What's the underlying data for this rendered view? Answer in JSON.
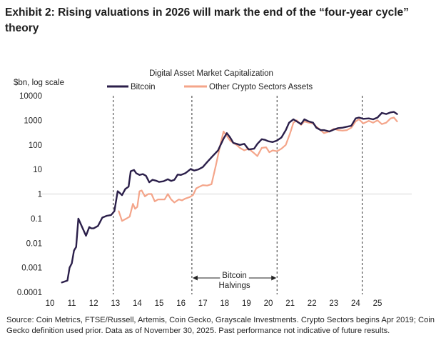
{
  "title": "Exhibit 2: Rising valuations in 2026 will mark the end of the “four-year cycle” theory",
  "source": "Source: Coin Metrics, FTSE/Russell, Artemis, Coin Gecko, Grayscale Investments. Crypto Sectors begins Apr 2019; Coin Gecko definition used prior. Data as of November 30, 2025. Past performance not indicative of future results.",
  "chart_data": {
    "type": "line",
    "title": "Digital Asset Market Capitalization",
    "ylabel": "$bn, log scale",
    "xlabel": "",
    "y_scale": "log",
    "ylim": [
      0.0001,
      10000
    ],
    "xlim": [
      10,
      26
    ],
    "y_ticks": [
      "0.0001",
      "0.001",
      "0.01",
      "0.1",
      "1",
      "10",
      "100",
      "1000",
      "10000"
    ],
    "y_tick_values": [
      0.0001,
      0.001,
      0.01,
      0.1,
      1,
      10,
      100,
      1000,
      10000
    ],
    "x_ticks": [
      "10",
      "11",
      "12",
      "13",
      "14",
      "15",
      "16",
      "17",
      "18",
      "19",
      "20",
      "21",
      "22",
      "23",
      "24",
      "25"
    ],
    "x_tick_values": [
      10,
      11,
      12,
      13,
      14,
      15,
      16,
      17,
      18,
      19,
      20,
      21,
      22,
      23,
      24,
      25
    ],
    "reference_line": {
      "y": 1,
      "color": "#d6d6d6"
    },
    "halvings": [
      12.9,
      16.5,
      20.4,
      24.3
    ],
    "annotation": {
      "text_line1": "Bitcoin",
      "text_line2": "Halvings",
      "from": 16.5,
      "to": 20.4
    },
    "series": [
      {
        "name": "Bitcoin",
        "color": "#2b1f4a",
        "x": [
          10.55,
          10.8,
          10.9,
          11.0,
          11.1,
          11.2,
          11.3,
          11.5,
          11.65,
          11.8,
          11.9,
          12.0,
          12.2,
          12.4,
          12.6,
          12.8,
          12.95,
          13.1,
          13.2,
          13.3,
          13.45,
          13.6,
          13.7,
          13.85,
          13.95,
          14.1,
          14.25,
          14.4,
          14.55,
          14.7,
          14.85,
          15.0,
          15.2,
          15.4,
          15.55,
          15.7,
          15.85,
          16.0,
          16.2,
          16.45,
          16.6,
          16.8,
          17.0,
          17.2,
          17.45,
          17.7,
          17.95,
          18.1,
          18.25,
          18.4,
          18.55,
          18.7,
          18.9,
          19.1,
          19.35,
          19.5,
          19.7,
          19.85,
          20.0,
          20.2,
          20.4,
          20.6,
          20.8,
          20.95,
          21.15,
          21.3,
          21.5,
          21.65,
          21.85,
          22.05,
          22.2,
          22.4,
          22.55,
          22.8,
          23.0,
          23.2,
          23.4,
          23.6,
          23.8,
          24.0,
          24.15,
          24.35,
          24.6,
          24.8,
          25.0,
          25.2,
          25.4,
          25.6,
          25.75,
          25.9
        ],
        "values": [
          0.00025,
          0.0003,
          0.001,
          0.0015,
          0.005,
          0.007,
          0.1,
          0.04,
          0.02,
          0.045,
          0.04,
          0.04,
          0.05,
          0.11,
          0.13,
          0.14,
          0.2,
          1.3,
          1.1,
          0.9,
          1.6,
          2.0,
          8.5,
          9.5,
          7.0,
          6.0,
          6.5,
          5.5,
          3.0,
          3.8,
          3.5,
          3.1,
          3.3,
          4.0,
          3.4,
          3.8,
          6.2,
          6.0,
          7.0,
          10.5,
          9.0,
          10.0,
          12.5,
          20.0,
          35.0,
          60.0,
          180.0,
          300.0,
          200.0,
          120.0,
          110.0,
          100.0,
          110.0,
          65.0,
          70.0,
          110.0,
          170.0,
          160.0,
          140.0,
          130.0,
          150.0,
          200.0,
          400.0,
          800.0,
          1100.0,
          900.0,
          700.0,
          1100.0,
          900.0,
          800.0,
          500.0,
          400.0,
          400.0,
          350.0,
          420.0,
          480.0,
          500.0,
          550.0,
          600.0,
          1200.0,
          1300.0,
          1150.0,
          1200.0,
          1100.0,
          1300.0,
          2000.0,
          1800.0,
          2100.0,
          2200.0,
          1800.0
        ]
      },
      {
        "name": "Other Crypto Sectors Assets",
        "color": "#f4a58a",
        "x": [
          13.15,
          13.3,
          13.5,
          13.65,
          13.8,
          13.9,
          14.0,
          14.1,
          14.2,
          14.35,
          14.5,
          14.65,
          14.8,
          14.95,
          15.1,
          15.25,
          15.4,
          15.55,
          15.7,
          15.9,
          16.05,
          16.2,
          16.4,
          16.55,
          16.7,
          16.85,
          17.0,
          17.2,
          17.4,
          17.6,
          17.8,
          17.95,
          18.1,
          18.25,
          18.4,
          18.55,
          18.7,
          18.9,
          19.1,
          19.3,
          19.5,
          19.7,
          19.9,
          20.05,
          20.2,
          20.4,
          20.6,
          20.8,
          21.0,
          21.15,
          21.3,
          21.5,
          21.65,
          21.85,
          22.05,
          22.2,
          22.4,
          22.55,
          22.8,
          23.0,
          23.2,
          23.4,
          23.6,
          23.8,
          24.0,
          24.15,
          24.35,
          24.6,
          24.8,
          25.0,
          25.2,
          25.4,
          25.6,
          25.75,
          25.9
        ],
        "values": [
          0.2,
          0.08,
          0.1,
          0.12,
          0.4,
          0.25,
          0.3,
          1.3,
          1.4,
          0.8,
          1.0,
          1.0,
          0.5,
          0.6,
          0.6,
          0.6,
          1.0,
          0.6,
          0.45,
          0.6,
          0.55,
          0.65,
          0.75,
          0.9,
          1.7,
          2.0,
          2.3,
          2.2,
          2.5,
          15.0,
          100.0,
          350.0,
          230.0,
          150.0,
          120.0,
          100.0,
          75.0,
          60.0,
          70.0,
          50.0,
          35.0,
          75.0,
          80.0,
          50.0,
          60.0,
          55.0,
          70.0,
          100.0,
          300.0,
          800.0,
          1000.0,
          650.0,
          900.0,
          800.0,
          750.0,
          550.0,
          400.0,
          300.0,
          350.0,
          450.0,
          400.0,
          380.0,
          400.0,
          500.0,
          900.0,
          1100.0,
          750.0,
          950.0,
          800.0,
          1000.0,
          700.0,
          800.0,
          1200.0,
          1300.0,
          900.0
        ]
      }
    ]
  }
}
